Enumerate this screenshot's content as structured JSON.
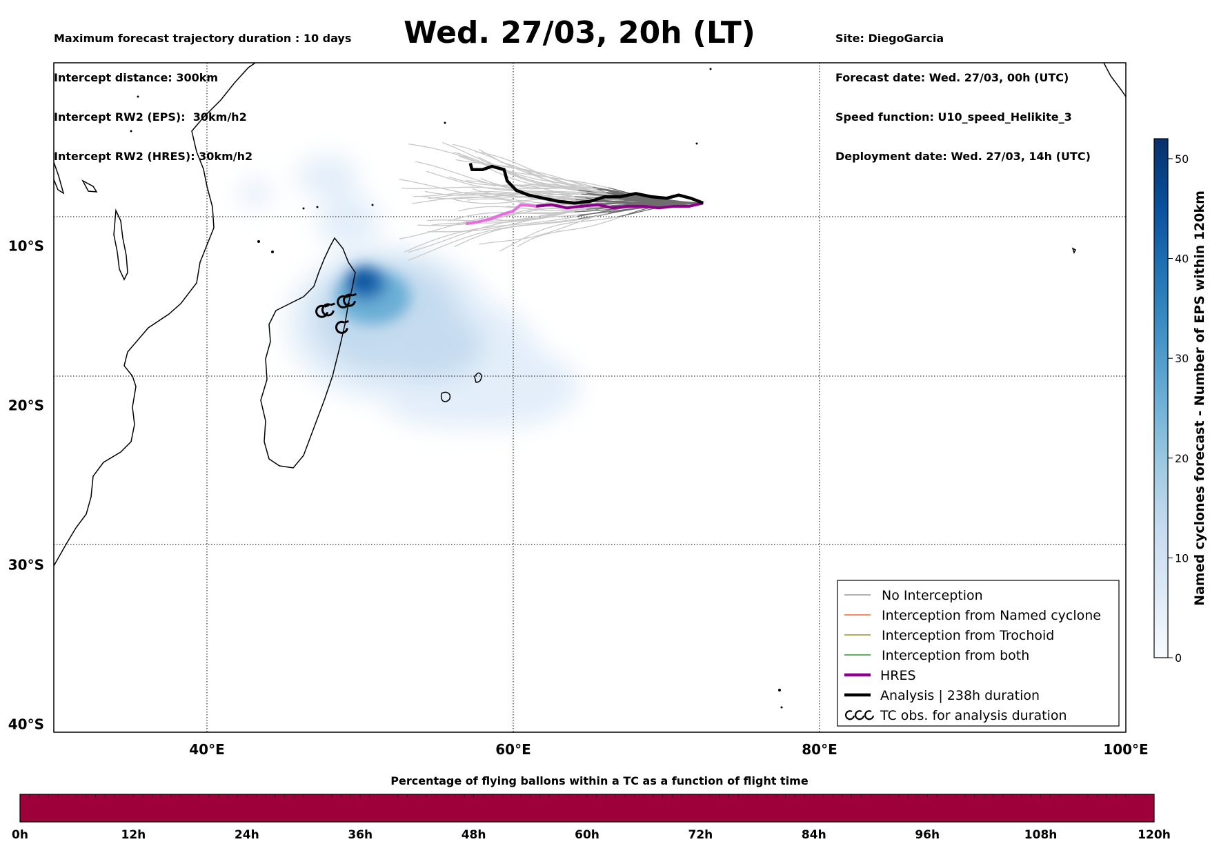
{
  "header": {
    "left": [
      "Maximum forecast trajectory duration : 10 days",
      "Intercept distance: 300km",
      "Intercept RW2 (EPS):  30km/h2",
      "Intercept RW2 (HRES): 30km/h2"
    ],
    "title": "Wed. 27/03, 20h (LT)",
    "right": [
      "Site: DiegoGarcia",
      "Forecast date: Wed. 27/03, 00h (UTC)",
      "Speed function: U10_speed_Helikite_3",
      "Deployment date: Wed. 27/03, 14h (UTC)"
    ]
  },
  "map": {
    "lon_range": [
      30,
      100
    ],
    "lat_range": [
      -40.5,
      1.5
    ],
    "lon_ticks": [
      {
        "value": 40,
        "label": "40°E"
      },
      {
        "value": 60,
        "label": "60°E"
      },
      {
        "value": 80,
        "label": "80°E"
      },
      {
        "value": 100,
        "label": "100°E"
      }
    ],
    "lat_ticks": [
      {
        "value": -10,
        "label": "10°S"
      },
      {
        "value": -20,
        "label": "20°S"
      },
      {
        "value": -30,
        "label": "30°S"
      },
      {
        "value": -40,
        "label": "40°S"
      }
    ],
    "grid": "dotted",
    "release_site": {
      "lon": 72.4,
      "lat": -7.3
    },
    "analysis_track": [
      [
        72.4,
        -7.3
      ],
      [
        71.6,
        -7.0
      ],
      [
        70.8,
        -6.8
      ],
      [
        70.0,
        -7.0
      ],
      [
        69.0,
        -6.9
      ],
      [
        68.0,
        -6.7
      ],
      [
        67.0,
        -6.9
      ],
      [
        66.0,
        -6.9
      ],
      [
        65.0,
        -7.2
      ],
      [
        64.0,
        -7.3
      ],
      [
        63.0,
        -7.2
      ],
      [
        62.0,
        -7.0
      ],
      [
        61.0,
        -6.8
      ],
      [
        60.2,
        -6.5
      ],
      [
        59.6,
        -5.9
      ],
      [
        59.4,
        -5.2
      ],
      [
        58.6,
        -5.0
      ],
      [
        58.0,
        -5.2
      ],
      [
        57.3,
        -5.2
      ],
      [
        57.2,
        -4.8
      ]
    ],
    "hres_track": [
      [
        72.4,
        -7.3
      ],
      [
        71.5,
        -7.5
      ],
      [
        70.5,
        -7.5
      ],
      [
        69.5,
        -7.6
      ],
      [
        68.5,
        -7.5
      ],
      [
        67.5,
        -7.5
      ],
      [
        66.5,
        -7.6
      ],
      [
        65.5,
        -7.4
      ],
      [
        64.5,
        -7.5
      ],
      [
        63.5,
        -7.6
      ],
      [
        62.5,
        -7.4
      ],
      [
        61.5,
        -7.5
      ],
      [
        60.5,
        -7.4
      ],
      [
        60.0,
        -7.8
      ],
      [
        59.3,
        -8.0
      ],
      [
        58.5,
        -8.3
      ],
      [
        57.6,
        -8.5
      ],
      [
        56.9,
        -8.6
      ]
    ],
    "tc_obs": [
      [
        47.5,
        -14.1
      ],
      [
        47.9,
        -14.0
      ],
      [
        48.9,
        -13.5
      ],
      [
        49.3,
        -13.4
      ],
      [
        48.8,
        -15.1
      ]
    ],
    "density_max": 52
  },
  "colorbar": {
    "label": "Named cyclones forecast - Number of EPS within 120km",
    "min": 0,
    "max": 52,
    "ticks": [
      0,
      10,
      20,
      30,
      40,
      50
    ],
    "colors": [
      "#f7fbff",
      "#deebf7",
      "#c6dbef",
      "#9ecae1",
      "#6baed6",
      "#4292c6",
      "#2171b5",
      "#08519c",
      "#08306b"
    ]
  },
  "legend": {
    "placement": "lower-right",
    "items": [
      {
        "label": "No Interception",
        "color": "#808080",
        "style": "thin"
      },
      {
        "label": "Interception from Named cyclone",
        "color": "#ff4500",
        "style": "thin"
      },
      {
        "label": "Interception from Trochoid",
        "color": "#808000",
        "style": "thin"
      },
      {
        "label": "Interception from both",
        "color": "#008000",
        "style": "thin"
      },
      {
        "label": "HRES",
        "color": "#8b008b",
        "style": "thick"
      },
      {
        "label": "Analysis | 238h duration",
        "color": "#000000",
        "style": "thick"
      },
      {
        "label": "TC obs. for analysis duration",
        "color": "#000000",
        "style": "symbol"
      }
    ]
  },
  "timeline": {
    "title": "Percentage of flying ballons within a TC as a function of flight time",
    "ticks": [
      "0h",
      "12h",
      "24h",
      "36h",
      "48h",
      "60h",
      "72h",
      "84h",
      "96h",
      "108h",
      "120h"
    ],
    "fill_color": "#9e003a",
    "fill_fraction": 1.0
  }
}
